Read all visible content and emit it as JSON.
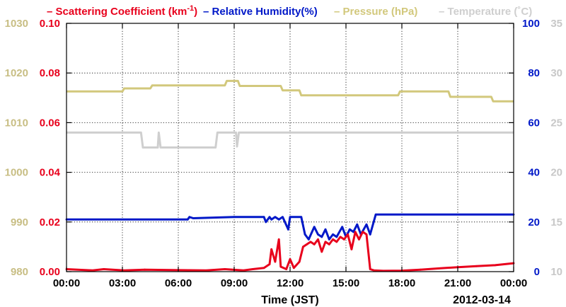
{
  "chart_data": {
    "type": "line",
    "date_label": "2012-03-14",
    "xlabel": "Time (JST)",
    "x_ticks": [
      "00:00",
      "03:00",
      "06:00",
      "09:00",
      "12:00",
      "15:00",
      "18:00",
      "21:00",
      "00:00"
    ],
    "x_range_hours": [
      0,
      24
    ],
    "grid": true,
    "legend": {
      "placement": "top",
      "entries": [
        {
          "dash": "–",
          "text": "Scattering Coefficient (km",
          "sup": "-1",
          "tail": ")",
          "color": "#e8001c"
        },
        {
          "dash": "–",
          "text": "Relative Humidity(%)",
          "color": "#0018c8"
        },
        {
          "dash": "–",
          "text": "Pressure (hPa)",
          "color": "#d2c87c"
        },
        {
          "dash": "–",
          "text": "Temperature (˚C)",
          "color": "#cfcfcf"
        }
      ]
    },
    "axes": {
      "pressure": {
        "ticks": [
          "1030",
          "1020",
          "1010",
          "1000",
          "990",
          "980"
        ],
        "range": [
          980,
          1030
        ],
        "color": "#c8be84"
      },
      "scattering": {
        "ticks": [
          "0.10",
          "0.08",
          "0.06",
          "0.04",
          "0.02",
          "0.00"
        ],
        "range": [
          0,
          0.1
        ],
        "color": "#e8001c"
      },
      "humidity": {
        "ticks": [
          "100",
          "80",
          "60",
          "40",
          "20",
          "0"
        ],
        "range": [
          0,
          100
        ],
        "color": "#0018c8"
      },
      "temperature": {
        "ticks": [
          "35",
          "30",
          "25",
          "20",
          "15",
          "10"
        ],
        "range": [
          10,
          35
        ],
        "color": "#c8c8c8"
      }
    },
    "series": [
      {
        "name": "Scattering Coefficient",
        "axis": "scattering",
        "color": "#e8001c",
        "points": [
          [
            0,
            0.001
          ],
          [
            1.4,
            0.0005
          ],
          [
            2,
            0.001
          ],
          [
            3.1,
            0.0005
          ],
          [
            4.2,
            0.0008
          ],
          [
            6,
            0.0006
          ],
          [
            7.5,
            0.0005
          ],
          [
            8.5,
            0.001
          ],
          [
            9.5,
            0.0005
          ],
          [
            10,
            0.001
          ],
          [
            10.6,
            0.0015
          ],
          [
            10.9,
            0.003
          ],
          [
            11,
            0.009
          ],
          [
            11.2,
            0.004
          ],
          [
            11.4,
            0.013
          ],
          [
            11.5,
            0.002
          ],
          [
            11.8,
            0.001
          ],
          [
            12,
            0.005
          ],
          [
            12.2,
            0.0015
          ],
          [
            12.5,
            0.004
          ],
          [
            12.7,
            0.01
          ],
          [
            12.9,
            0.011
          ],
          [
            13.1,
            0.012
          ],
          [
            13.3,
            0.011
          ],
          [
            13.5,
            0.013
          ],
          [
            13.7,
            0.008
          ],
          [
            13.9,
            0.012
          ],
          [
            14.1,
            0.011
          ],
          [
            14.3,
            0.013
          ],
          [
            14.5,
            0.012
          ],
          [
            14.7,
            0.014
          ],
          [
            14.9,
            0.013
          ],
          [
            15.1,
            0.015
          ],
          [
            15.3,
            0.009
          ],
          [
            15.5,
            0.016
          ],
          [
            15.7,
            0.013
          ],
          [
            15.9,
            0.016
          ],
          [
            16.1,
            0.015
          ],
          [
            16.3,
            0.001
          ],
          [
            16.5,
            0.0005
          ],
          [
            17,
            0.0003
          ],
          [
            18,
            0.0004
          ],
          [
            19,
            0.0008
          ],
          [
            20,
            0.0013
          ],
          [
            21,
            0.0018
          ],
          [
            22,
            0.0022
          ],
          [
            23,
            0.0026
          ],
          [
            24,
            0.0034
          ]
        ]
      },
      {
        "name": "Relative Humidity",
        "axis": "humidity",
        "color": "#0018c8",
        "points": [
          [
            0,
            21
          ],
          [
            6.5,
            21
          ],
          [
            6.6,
            22
          ],
          [
            6.8,
            21.5
          ],
          [
            9,
            22
          ],
          [
            10.6,
            22
          ],
          [
            10.7,
            20
          ],
          [
            10.9,
            22
          ],
          [
            11,
            21
          ],
          [
            11.2,
            22
          ],
          [
            11.4,
            21
          ],
          [
            11.6,
            22
          ],
          [
            11.9,
            17
          ],
          [
            12,
            22
          ],
          [
            12.6,
            22
          ],
          [
            12.8,
            15
          ],
          [
            13,
            13
          ],
          [
            13.3,
            18
          ],
          [
            13.5,
            15
          ],
          [
            13.7,
            14
          ],
          [
            13.9,
            17
          ],
          [
            14.1,
            13
          ],
          [
            14.3,
            15
          ],
          [
            14.5,
            14
          ],
          [
            14.8,
            18
          ],
          [
            15,
            14
          ],
          [
            15.2,
            17
          ],
          [
            15.4,
            16
          ],
          [
            15.6,
            19
          ],
          [
            15.8,
            15
          ],
          [
            16.1,
            19
          ],
          [
            16.3,
            15
          ],
          [
            16.6,
            23
          ],
          [
            24,
            23
          ]
        ]
      },
      {
        "name": "Pressure",
        "axis": "pressure",
        "color": "#d2c87c",
        "points": [
          [
            0,
            1016.3
          ],
          [
            3,
            1016.3
          ],
          [
            3.1,
            1016.9
          ],
          [
            4.5,
            1016.9
          ],
          [
            4.6,
            1017.5
          ],
          [
            8.5,
            1017.5
          ],
          [
            8.6,
            1018.4
          ],
          [
            9.2,
            1018.4
          ],
          [
            9.3,
            1017.4
          ],
          [
            11.5,
            1017.4
          ],
          [
            11.6,
            1016.5
          ],
          [
            12.5,
            1016.5
          ],
          [
            12.6,
            1015.5
          ],
          [
            17.8,
            1015.5
          ],
          [
            17.9,
            1016.3
          ],
          [
            20.5,
            1016.3
          ],
          [
            20.6,
            1015.2
          ],
          [
            22.8,
            1015.2
          ],
          [
            22.9,
            1014.3
          ],
          [
            24,
            1014.3
          ]
        ]
      },
      {
        "name": "Temperature",
        "axis": "temperature",
        "color": "#cfcfcf",
        "points": [
          [
            0,
            24
          ],
          [
            4,
            24
          ],
          [
            4.1,
            22.5
          ],
          [
            4.9,
            22.5
          ],
          [
            4.95,
            24
          ],
          [
            5.05,
            22.5
          ],
          [
            8,
            22.5
          ],
          [
            8.1,
            24
          ],
          [
            9.1,
            24
          ],
          [
            9.15,
            22.6
          ],
          [
            9.25,
            24
          ],
          [
            24,
            24
          ]
        ]
      }
    ]
  }
}
